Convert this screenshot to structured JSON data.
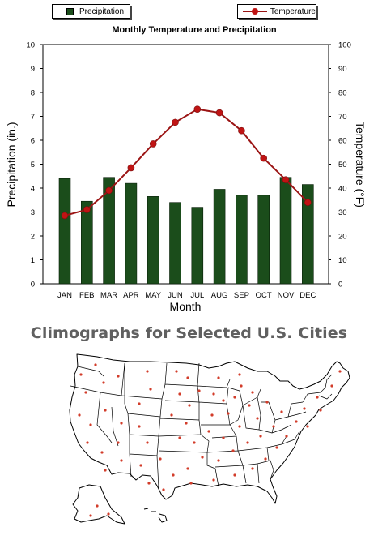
{
  "legend": {
    "precip_label": "Precipitation",
    "temp_label": "Temperature"
  },
  "colors": {
    "bar": "#1b4d1b",
    "line": "#9b1414",
    "marker": "#c01414",
    "map_dot": "#d23c2a"
  },
  "chart_data": {
    "type": "bar",
    "title": "Monthly Temperature and Precipitation",
    "xlabel": "Month",
    "ylabel": "Precipitation (in.)",
    "y2label": "Temperature (°F)",
    "categories": [
      "JAN",
      "FEB",
      "MAR",
      "APR",
      "MAY",
      "JUN",
      "JUL",
      "AUG",
      "SEP",
      "OCT",
      "NOV",
      "DEC"
    ],
    "ylim": [
      0,
      10
    ],
    "y2lim": [
      0,
      100
    ],
    "yticks": [
      0,
      1,
      2,
      3,
      4,
      5,
      6,
      7,
      8,
      9,
      10
    ],
    "y2ticks": [
      0,
      10,
      20,
      30,
      40,
      50,
      60,
      70,
      80,
      90,
      100
    ],
    "series": [
      {
        "name": "Precipitation",
        "type": "bar",
        "axis": "left",
        "values": [
          4.4,
          3.45,
          4.45,
          4.2,
          3.65,
          3.4,
          3.2,
          3.95,
          3.7,
          3.7,
          4.45,
          4.15
        ]
      },
      {
        "name": "Temperature",
        "type": "line",
        "axis": "right",
        "values": [
          28.5,
          31,
          39,
          48.5,
          58.5,
          67.5,
          73,
          71.5,
          64,
          52.5,
          43.5,
          34
        ]
      }
    ],
    "grid": false,
    "legend_placement": "top"
  },
  "map": {
    "title": "Climographs for Selected U.S. Cities"
  }
}
